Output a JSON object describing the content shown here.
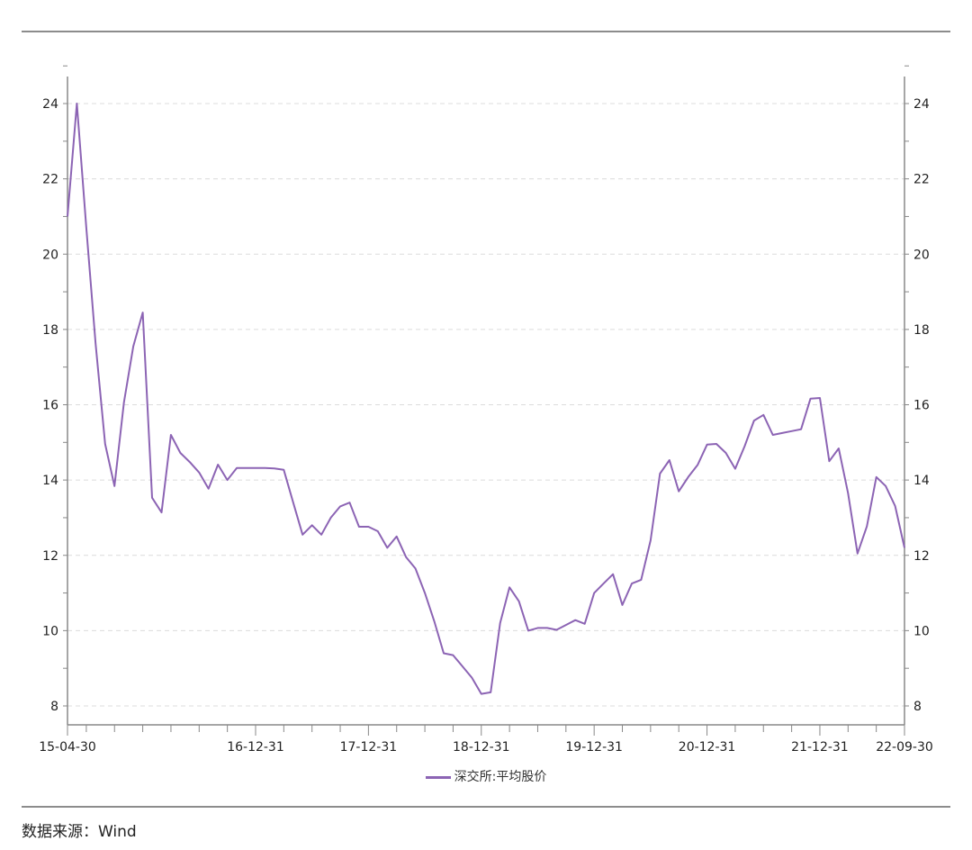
{
  "source": "数据来源：Wind",
  "chart_data": {
    "type": "line",
    "title": "",
    "xlabel": "",
    "ylabel": "",
    "ylim": [
      8,
      24
    ],
    "yticks": [
      8,
      10,
      12,
      14,
      16,
      18,
      20,
      22,
      24
    ],
    "y_axis_sides": "left and right",
    "grid": "horizontal dashed",
    "legend_placement": "bottom",
    "line_color": "#8c64b4",
    "xtick_labels": [
      {
        "date": "2015-04",
        "label": "15-04-30"
      },
      {
        "date": "2016-12",
        "label": "16-12-31"
      },
      {
        "date": "2017-12",
        "label": "17-12-31"
      },
      {
        "date": "2018-12",
        "label": "18-12-31"
      },
      {
        "date": "2019-12",
        "label": "19-12-31"
      },
      {
        "date": "2020-12",
        "label": "20-12-31"
      },
      {
        "date": "2021-12",
        "label": "21-12-31"
      },
      {
        "date": "2022-09",
        "label": "22-09-30"
      }
    ],
    "x": [
      "2015-04",
      "2015-05",
      "2015-06",
      "2015-07",
      "2015-08",
      "2015-09",
      "2015-10",
      "2015-11",
      "2015-12",
      "2016-01",
      "2016-02",
      "2016-03",
      "2016-04",
      "2016-05",
      "2016-06",
      "2016-07",
      "2016-08",
      "2016-09",
      "2016-10",
      "2016-11",
      "2016-12",
      "2017-01",
      "2017-02",
      "2017-03",
      "2017-04",
      "2017-05",
      "2017-06",
      "2017-07",
      "2017-08",
      "2017-09",
      "2017-10",
      "2017-11",
      "2017-12",
      "2018-01",
      "2018-02",
      "2018-03",
      "2018-04",
      "2018-05",
      "2018-06",
      "2018-07",
      "2018-08",
      "2018-09",
      "2018-10",
      "2018-11",
      "2018-12",
      "2019-01",
      "2019-02",
      "2019-03",
      "2019-04",
      "2019-05",
      "2019-06",
      "2019-07",
      "2019-08",
      "2019-09",
      "2019-10",
      "2019-11",
      "2019-12",
      "2020-01",
      "2020-02",
      "2020-03",
      "2020-04",
      "2020-05",
      "2020-06",
      "2020-07",
      "2020-08",
      "2020-09",
      "2020-10",
      "2020-11",
      "2020-12",
      "2021-01",
      "2021-02",
      "2021-03",
      "2021-04",
      "2021-05",
      "2021-06",
      "2021-07",
      "2021-08",
      "2021-09",
      "2021-10",
      "2021-11",
      "2021-12",
      "2022-01",
      "2022-02",
      "2022-03",
      "2022-04",
      "2022-05",
      "2022-06",
      "2022-07",
      "2022-08",
      "2022-09"
    ],
    "series": [
      {
        "name": "深交所:平均股价",
        "values": [
          21.0,
          24.0,
          20.7,
          17.6,
          14.96,
          13.84,
          16.06,
          17.55,
          18.45,
          13.53,
          13.14,
          15.2,
          14.72,
          14.48,
          14.2,
          13.77,
          14.41,
          14.0,
          14.32,
          14.32,
          14.32,
          14.32,
          14.31,
          14.27,
          13.4,
          12.55,
          12.8,
          12.55,
          13.0,
          13.3,
          13.4,
          12.76,
          12.76,
          12.64,
          12.2,
          12.5,
          11.95,
          11.65,
          11.0,
          10.25,
          9.4,
          9.35,
          9.05,
          8.75,
          8.32,
          8.36,
          10.2,
          11.15,
          10.78,
          10.0,
          10.07,
          10.07,
          10.02,
          10.15,
          10.28,
          10.18,
          11.0,
          11.25,
          11.5,
          10.68,
          11.25,
          11.35,
          12.4,
          14.17,
          14.53,
          13.7,
          14.08,
          14.4,
          14.94,
          14.96,
          14.72,
          14.3,
          14.9,
          15.58,
          15.73,
          15.2,
          15.25,
          15.3,
          15.35,
          16.16,
          16.18,
          14.5,
          14.84,
          13.65,
          12.05,
          12.77,
          14.08,
          13.84,
          13.31,
          12.2
        ]
      }
    ]
  }
}
